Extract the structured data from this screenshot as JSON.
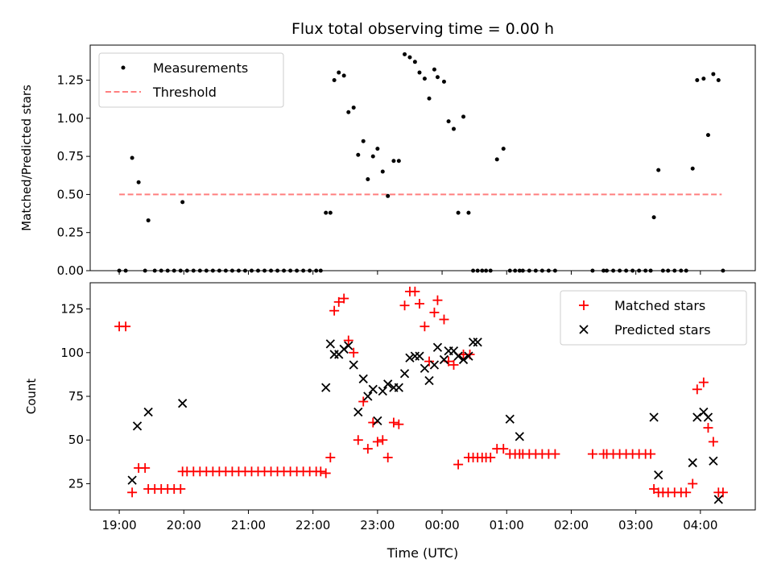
{
  "chart_data": [
    {
      "type": "scatter",
      "title": "Flux total observing time = 0.00 h",
      "xlabel": "",
      "ylabel": "Matched/Predicted stars",
      "ylim": [
        0,
        1.48
      ],
      "yticks": [
        0.0,
        0.25,
        0.5,
        0.75,
        1.0,
        1.25
      ],
      "ytick_labels": [
        "0.00",
        "0.25",
        "0.50",
        "0.75",
        "1.00",
        "1.25"
      ],
      "grid": false,
      "legend": {
        "placement": "upper-left",
        "entries": [
          "Measurements",
          "Threshold"
        ]
      },
      "threshold": {
        "name": "Threshold",
        "x": [
          19.0,
          28.33
        ],
        "y": [
          0.5,
          0.5
        ],
        "color": "#ff7f7f",
        "style": "dashed"
      },
      "series": [
        {
          "name": "Measurements",
          "marker": "dot",
          "color": "#000000",
          "x": [
            19.0,
            19.1,
            19.2,
            19.3,
            19.4,
            19.45,
            19.55,
            19.65,
            19.75,
            19.85,
            19.95,
            19.98,
            20.05,
            20.15,
            20.25,
            20.35,
            20.45,
            20.55,
            20.65,
            20.75,
            20.85,
            20.95,
            21.05,
            21.15,
            21.25,
            21.35,
            21.45,
            21.55,
            21.65,
            21.75,
            21.85,
            21.95,
            22.05,
            22.12,
            22.2,
            22.27,
            22.33,
            22.4,
            22.48,
            22.55,
            22.63,
            22.7,
            22.78,
            22.85,
            22.93,
            23.0,
            23.08,
            23.16,
            23.25,
            23.33,
            23.42,
            23.5,
            23.58,
            23.65,
            23.73,
            23.8,
            23.88,
            23.93,
            24.03,
            24.1,
            24.18,
            24.25,
            24.33,
            24.41,
            24.48,
            24.55,
            24.62,
            24.68,
            24.75,
            24.85,
            24.95,
            25.05,
            25.13,
            25.2,
            25.25,
            25.35,
            25.45,
            25.55,
            25.65,
            25.75,
            26.33,
            26.5,
            26.55,
            26.65,
            26.75,
            26.85,
            26.95,
            27.05,
            27.15,
            27.23,
            27.28,
            27.35,
            27.42,
            27.5,
            27.6,
            27.7,
            27.78,
            27.88,
            27.95,
            28.05,
            28.12,
            28.2,
            28.28,
            28.35
          ],
          "y": [
            0,
            0,
            0.74,
            0.58,
            0,
            0.33,
            0,
            0,
            0,
            0,
            0,
            0.45,
            0,
            0,
            0,
            0,
            0,
            0,
            0,
            0,
            0,
            0,
            0,
            0,
            0,
            0,
            0,
            0,
            0,
            0,
            0,
            0,
            0,
            0,
            0.38,
            0.38,
            1.25,
            1.3,
            1.28,
            1.04,
            1.07,
            0.76,
            0.85,
            0.6,
            0.75,
            0.8,
            0.65,
            0.49,
            0.72,
            0.72,
            1.42,
            1.4,
            1.37,
            1.3,
            1.26,
            1.13,
            1.32,
            1.27,
            1.24,
            0.98,
            0.93,
            0.38,
            1.01,
            0.38,
            0,
            0,
            0,
            0,
            0,
            0.73,
            0.8,
            0,
            0,
            0,
            0,
            0,
            0,
            0,
            0,
            0,
            0,
            0,
            0,
            0,
            0,
            0,
            0,
            0,
            0,
            0,
            0.35,
            0.66,
            0,
            0,
            0,
            0,
            0,
            0.67,
            1.25,
            1.26,
            0.89,
            1.29,
            1.25,
            0
          ]
        }
      ]
    },
    {
      "type": "scatter",
      "title": "",
      "xlabel": "Time (UTC)",
      "ylabel": "Count",
      "xlim": [
        18.55,
        28.85
      ],
      "ylim": [
        10,
        140
      ],
      "xticks": [
        19,
        20,
        21,
        22,
        23,
        24,
        25,
        26,
        27,
        28
      ],
      "xtick_labels": [
        "19:00",
        "20:00",
        "21:00",
        "22:00",
        "23:00",
        "00:00",
        "01:00",
        "02:00",
        "03:00",
        "04:00"
      ],
      "yticks": [
        25,
        50,
        75,
        100,
        125
      ],
      "ytick_labels": [
        "25",
        "50",
        "75",
        "100",
        "125"
      ],
      "grid": false,
      "legend": {
        "placement": "upper-right",
        "entries": [
          "Matched stars",
          "Predicted stars"
        ]
      },
      "series": [
        {
          "name": "Matched stars",
          "marker": "plus",
          "color": "#ff0000",
          "x": [
            19.0,
            19.1,
            19.2,
            19.3,
            19.4,
            19.45,
            19.55,
            19.65,
            19.75,
            19.85,
            19.95,
            19.98,
            20.05,
            20.15,
            20.25,
            20.35,
            20.45,
            20.55,
            20.65,
            20.75,
            20.85,
            20.95,
            21.05,
            21.15,
            21.25,
            21.35,
            21.45,
            21.55,
            21.65,
            21.75,
            21.85,
            21.95,
            22.05,
            22.12,
            22.2,
            22.27,
            22.33,
            22.4,
            22.48,
            22.55,
            22.63,
            22.7,
            22.78,
            22.85,
            22.93,
            23.0,
            23.08,
            23.16,
            23.25,
            23.33,
            23.42,
            23.5,
            23.58,
            23.65,
            23.73,
            23.8,
            23.88,
            23.93,
            24.03,
            24.1,
            24.18,
            24.25,
            24.33,
            24.41,
            24.48,
            24.55,
            24.62,
            24.68,
            24.75,
            24.85,
            24.95,
            25.05,
            25.13,
            25.2,
            25.25,
            25.35,
            25.45,
            25.55,
            25.65,
            25.75,
            26.33,
            26.5,
            26.55,
            26.65,
            26.75,
            26.85,
            26.95,
            27.05,
            27.15,
            27.23,
            27.28,
            27.35,
            27.42,
            27.5,
            27.6,
            27.7,
            27.78,
            27.88,
            27.95,
            28.05,
            28.12,
            28.2,
            28.28,
            28.35
          ],
          "y": [
            115,
            115,
            20,
            34,
            34,
            22,
            22,
            22,
            22,
            22,
            22,
            32,
            32,
            32,
            32,
            32,
            32,
            32,
            32,
            32,
            32,
            32,
            32,
            32,
            32,
            32,
            32,
            32,
            32,
            32,
            32,
            32,
            32,
            32,
            31,
            40,
            124,
            129,
            131,
            107,
            100,
            50,
            72,
            45,
            60,
            49,
            50,
            40,
            60,
            59,
            127,
            135,
            135,
            128,
            115,
            95,
            123,
            130,
            119,
            95,
            93,
            36,
            99,
            40,
            40,
            40,
            40,
            40,
            40,
            45,
            45,
            42,
            42,
            42,
            42,
            42,
            42,
            42,
            42,
            42,
            42,
            42,
            42,
            42,
            42,
            42,
            42,
            42,
            42,
            42,
            22,
            20,
            20,
            20,
            20,
            20,
            20,
            25,
            79,
            83,
            57,
            49,
            20,
            20
          ],
          "extra_y": [
            {
              "x": 24.43,
              "y": 99
            }
          ]
        },
        {
          "name": "Predicted stars",
          "marker": "x",
          "color": "#000000",
          "x": [
            19.2,
            19.28,
            19.45,
            19.98,
            22.2,
            22.27,
            22.33,
            22.4,
            22.48,
            22.55,
            22.63,
            22.7,
            22.78,
            22.85,
            22.93,
            23.0,
            23.08,
            23.16,
            23.25,
            23.33,
            23.42,
            23.5,
            23.58,
            23.65,
            23.73,
            23.8,
            23.88,
            23.93,
            24.03,
            24.1,
            24.18,
            24.25,
            24.33,
            24.41,
            24.48,
            24.55,
            25.05,
            25.2,
            27.28,
            27.35,
            27.88,
            27.95,
            28.05,
            28.12,
            28.2,
            28.28
          ],
          "y": [
            27,
            58,
            66,
            71,
            80,
            105,
            99,
            99,
            102,
            104,
            93,
            66,
            85,
            75,
            79,
            61,
            78,
            82,
            80,
            80,
            88,
            97,
            98,
            98,
            91,
            84,
            93,
            103,
            96,
            101,
            101,
            98,
            96,
            98,
            106,
            106,
            62,
            52,
            63,
            30,
            37,
            63,
            66,
            63,
            38,
            16
          ]
        }
      ]
    }
  ]
}
